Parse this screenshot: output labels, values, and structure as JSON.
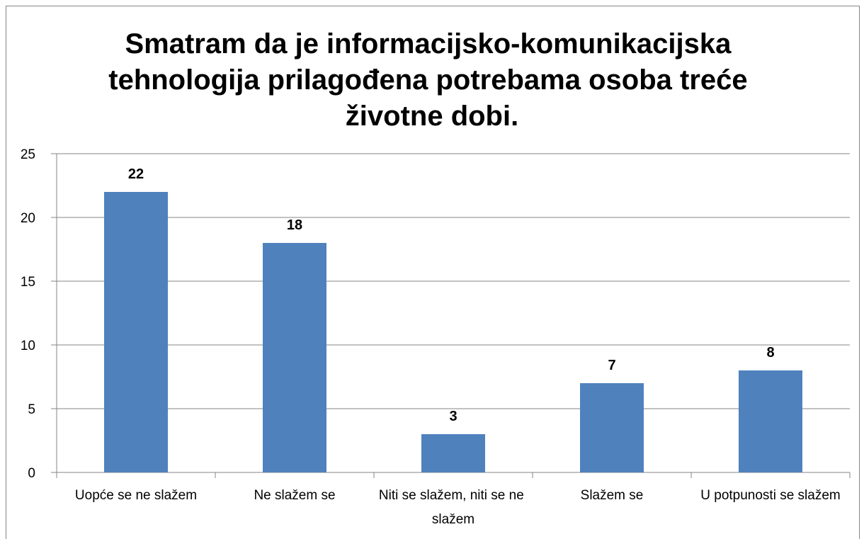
{
  "chart_data": {
    "type": "bar",
    "title": "Smatram da je informacijsko-komunikacijska tehnologija prilagođena potrebama osoba treće životne dobi.",
    "categories": [
      "Uopće se ne slažem",
      "Ne slažem se",
      "Niti se slažem, niti se ne slažem",
      "Slažem se",
      "U potpunosti se slažem"
    ],
    "values": [
      22,
      18,
      3,
      7,
      8
    ],
    "color": "#4f81bd",
    "ylim": [
      0,
      25
    ],
    "yticks": [
      0,
      5,
      10,
      15,
      20,
      25
    ],
    "grid": true
  }
}
